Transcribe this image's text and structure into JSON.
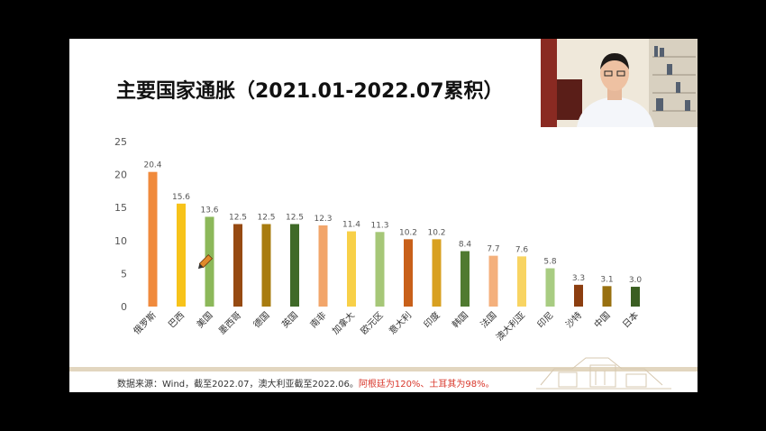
{
  "slide": {
    "title": "主要国家通胀（2021.01-2022.07累积）",
    "footer": {
      "source": "数据来源：Wind，截至2022.07，澳大利亚截至2022.06。",
      "note": "阿根廷为120%、土耳其为98%。"
    }
  },
  "chart_data": {
    "type": "bar",
    "title": "主要国家通胀（2021.01-2022.07累积）",
    "xlabel": "",
    "ylabel": "",
    "ylim": [
      0,
      25
    ],
    "yticks": [
      0,
      5,
      10,
      15,
      20,
      25
    ],
    "grid": false,
    "legend": "none",
    "categories": [
      "俄罗斯",
      "巴西",
      "美国",
      "墨西哥",
      "德国",
      "英国",
      "南非",
      "加拿大",
      "欧元区",
      "意大利",
      "印度",
      "韩国",
      "法国",
      "澳大利亚",
      "印尼",
      "沙特",
      "中国",
      "日本"
    ],
    "values": [
      20.4,
      15.6,
      13.6,
      12.5,
      12.5,
      12.5,
      12.3,
      11.4,
      11.3,
      10.2,
      10.2,
      8.4,
      7.7,
      7.6,
      5.8,
      3.3,
      3.1,
      3.0
    ],
    "data_labels": [
      "20.4",
      "15.6",
      "13.6",
      "12.5",
      "12.5",
      "12.5",
      "12.3",
      "11.4",
      "11.3",
      "10.2",
      "10.2",
      "8.4",
      "7.7",
      "7.6",
      "5.8",
      "3.3",
      "3.1",
      "3.0"
    ],
    "colors": [
      "#f08a3c",
      "#f7c31a",
      "#8cb85a",
      "#964a12",
      "#a87c10",
      "#3f6a28",
      "#f2a56a",
      "#f8d048",
      "#a6c778",
      "#c8601a",
      "#d8a020",
      "#4f7a30",
      "#f4b07c",
      "#f8d462",
      "#a8cc82",
      "#8c3e10",
      "#987010",
      "#3a5e22"
    ]
  },
  "webcam": {
    "description_icon": "presenter-video-icon"
  }
}
